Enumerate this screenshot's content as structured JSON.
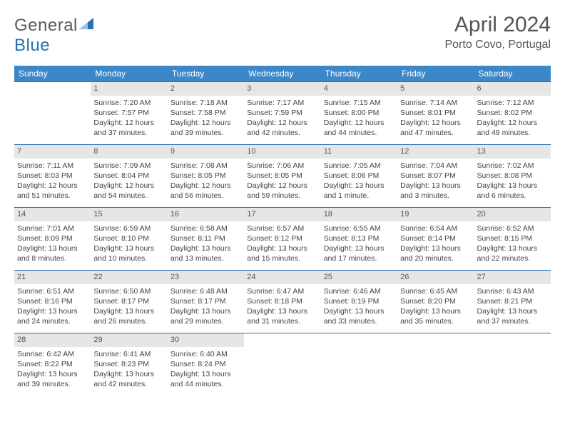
{
  "brand": {
    "part1": "General",
    "part2": "Blue"
  },
  "title": "April 2024",
  "location": "Porto Covo, Portugal",
  "colors": {
    "header_bg": "#3b87c8",
    "border": "#2a6fb5",
    "daynum_bg": "#e6e6e6",
    "text": "#444444",
    "title_text": "#555555"
  },
  "day_names": [
    "Sunday",
    "Monday",
    "Tuesday",
    "Wednesday",
    "Thursday",
    "Friday",
    "Saturday"
  ],
  "weeks": [
    [
      null,
      {
        "n": "1",
        "sr": "Sunrise: 7:20 AM",
        "ss": "Sunset: 7:57 PM",
        "d1": "Daylight: 12 hours",
        "d2": "and 37 minutes."
      },
      {
        "n": "2",
        "sr": "Sunrise: 7:18 AM",
        "ss": "Sunset: 7:58 PM",
        "d1": "Daylight: 12 hours",
        "d2": "and 39 minutes."
      },
      {
        "n": "3",
        "sr": "Sunrise: 7:17 AM",
        "ss": "Sunset: 7:59 PM",
        "d1": "Daylight: 12 hours",
        "d2": "and 42 minutes."
      },
      {
        "n": "4",
        "sr": "Sunrise: 7:15 AM",
        "ss": "Sunset: 8:00 PM",
        "d1": "Daylight: 12 hours",
        "d2": "and 44 minutes."
      },
      {
        "n": "5",
        "sr": "Sunrise: 7:14 AM",
        "ss": "Sunset: 8:01 PM",
        "d1": "Daylight: 12 hours",
        "d2": "and 47 minutes."
      },
      {
        "n": "6",
        "sr": "Sunrise: 7:12 AM",
        "ss": "Sunset: 8:02 PM",
        "d1": "Daylight: 12 hours",
        "d2": "and 49 minutes."
      }
    ],
    [
      {
        "n": "7",
        "sr": "Sunrise: 7:11 AM",
        "ss": "Sunset: 8:03 PM",
        "d1": "Daylight: 12 hours",
        "d2": "and 51 minutes."
      },
      {
        "n": "8",
        "sr": "Sunrise: 7:09 AM",
        "ss": "Sunset: 8:04 PM",
        "d1": "Daylight: 12 hours",
        "d2": "and 54 minutes."
      },
      {
        "n": "9",
        "sr": "Sunrise: 7:08 AM",
        "ss": "Sunset: 8:05 PM",
        "d1": "Daylight: 12 hours",
        "d2": "and 56 minutes."
      },
      {
        "n": "10",
        "sr": "Sunrise: 7:06 AM",
        "ss": "Sunset: 8:05 PM",
        "d1": "Daylight: 12 hours",
        "d2": "and 59 minutes."
      },
      {
        "n": "11",
        "sr": "Sunrise: 7:05 AM",
        "ss": "Sunset: 8:06 PM",
        "d1": "Daylight: 13 hours",
        "d2": "and 1 minute."
      },
      {
        "n": "12",
        "sr": "Sunrise: 7:04 AM",
        "ss": "Sunset: 8:07 PM",
        "d1": "Daylight: 13 hours",
        "d2": "and 3 minutes."
      },
      {
        "n": "13",
        "sr": "Sunrise: 7:02 AM",
        "ss": "Sunset: 8:08 PM",
        "d1": "Daylight: 13 hours",
        "d2": "and 6 minutes."
      }
    ],
    [
      {
        "n": "14",
        "sr": "Sunrise: 7:01 AM",
        "ss": "Sunset: 8:09 PM",
        "d1": "Daylight: 13 hours",
        "d2": "and 8 minutes."
      },
      {
        "n": "15",
        "sr": "Sunrise: 6:59 AM",
        "ss": "Sunset: 8:10 PM",
        "d1": "Daylight: 13 hours",
        "d2": "and 10 minutes."
      },
      {
        "n": "16",
        "sr": "Sunrise: 6:58 AM",
        "ss": "Sunset: 8:11 PM",
        "d1": "Daylight: 13 hours",
        "d2": "and 13 minutes."
      },
      {
        "n": "17",
        "sr": "Sunrise: 6:57 AM",
        "ss": "Sunset: 8:12 PM",
        "d1": "Daylight: 13 hours",
        "d2": "and 15 minutes."
      },
      {
        "n": "18",
        "sr": "Sunrise: 6:55 AM",
        "ss": "Sunset: 8:13 PM",
        "d1": "Daylight: 13 hours",
        "d2": "and 17 minutes."
      },
      {
        "n": "19",
        "sr": "Sunrise: 6:54 AM",
        "ss": "Sunset: 8:14 PM",
        "d1": "Daylight: 13 hours",
        "d2": "and 20 minutes."
      },
      {
        "n": "20",
        "sr": "Sunrise: 6:52 AM",
        "ss": "Sunset: 8:15 PM",
        "d1": "Daylight: 13 hours",
        "d2": "and 22 minutes."
      }
    ],
    [
      {
        "n": "21",
        "sr": "Sunrise: 6:51 AM",
        "ss": "Sunset: 8:16 PM",
        "d1": "Daylight: 13 hours",
        "d2": "and 24 minutes."
      },
      {
        "n": "22",
        "sr": "Sunrise: 6:50 AM",
        "ss": "Sunset: 8:17 PM",
        "d1": "Daylight: 13 hours",
        "d2": "and 26 minutes."
      },
      {
        "n": "23",
        "sr": "Sunrise: 6:48 AM",
        "ss": "Sunset: 8:17 PM",
        "d1": "Daylight: 13 hours",
        "d2": "and 29 minutes."
      },
      {
        "n": "24",
        "sr": "Sunrise: 6:47 AM",
        "ss": "Sunset: 8:18 PM",
        "d1": "Daylight: 13 hours",
        "d2": "and 31 minutes."
      },
      {
        "n": "25",
        "sr": "Sunrise: 6:46 AM",
        "ss": "Sunset: 8:19 PM",
        "d1": "Daylight: 13 hours",
        "d2": "and 33 minutes."
      },
      {
        "n": "26",
        "sr": "Sunrise: 6:45 AM",
        "ss": "Sunset: 8:20 PM",
        "d1": "Daylight: 13 hours",
        "d2": "and 35 minutes."
      },
      {
        "n": "27",
        "sr": "Sunrise: 6:43 AM",
        "ss": "Sunset: 8:21 PM",
        "d1": "Daylight: 13 hours",
        "d2": "and 37 minutes."
      }
    ],
    [
      {
        "n": "28",
        "sr": "Sunrise: 6:42 AM",
        "ss": "Sunset: 8:22 PM",
        "d1": "Daylight: 13 hours",
        "d2": "and 39 minutes."
      },
      {
        "n": "29",
        "sr": "Sunrise: 6:41 AM",
        "ss": "Sunset: 8:23 PM",
        "d1": "Daylight: 13 hours",
        "d2": "and 42 minutes."
      },
      {
        "n": "30",
        "sr": "Sunrise: 6:40 AM",
        "ss": "Sunset: 8:24 PM",
        "d1": "Daylight: 13 hours",
        "d2": "and 44 minutes."
      },
      null,
      null,
      null,
      null
    ]
  ]
}
